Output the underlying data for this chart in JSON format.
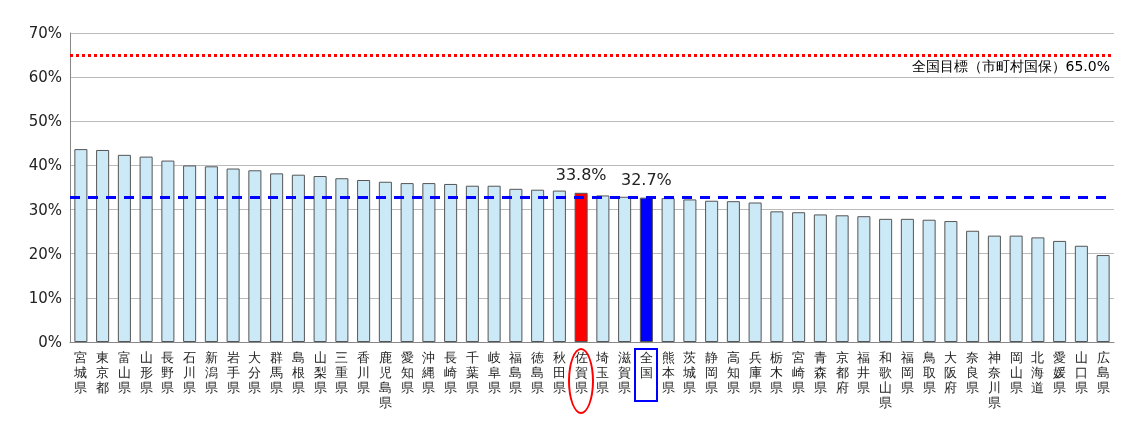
{
  "chart_data": {
    "type": "bar",
    "categories": [
      "宮城県",
      "東京都",
      "富山県",
      "山形県",
      "長野県",
      "石川県",
      "新潟県",
      "岩手県",
      "大分県",
      "群馬県",
      "島根県",
      "山梨県",
      "三重県",
      "香川県",
      "鹿児島県",
      "愛知県",
      "沖縄県",
      "長崎県",
      "千葉県",
      "岐阜県",
      "福島県",
      "徳島県",
      "秋田県",
      "佐賀県",
      "埼玉県",
      "滋賀県",
      "全国",
      "熊本県",
      "茨城県",
      "静岡県",
      "高知県",
      "兵庫県",
      "栃木県",
      "宮崎県",
      "青森県",
      "京都府",
      "福井県",
      "和歌山県",
      "福岡県",
      "鳥取県",
      "大阪府",
      "奈良県",
      "神奈川県",
      "岡山県",
      "北海道",
      "愛媛県",
      "山口県",
      "広島県"
    ],
    "values": [
      43.7,
      43.5,
      42.4,
      42.0,
      41.1,
      40.0,
      39.8,
      39.3,
      38.9,
      38.2,
      37.9,
      37.6,
      37.1,
      36.7,
      36.3,
      36.0,
      36.0,
      35.8,
      35.4,
      35.4,
      34.7,
      34.5,
      34.3,
      33.8,
      33.2,
      32.9,
      32.7,
      32.6,
      32.3,
      32.0,
      31.9,
      31.6,
      29.6,
      29.4,
      28.9,
      28.7,
      28.5,
      27.9,
      27.9,
      27.7,
      27.4,
      25.2,
      24.1,
      24.1,
      23.7,
      22.9,
      21.8,
      19.7
    ],
    "colors": [
      "#cce9f7",
      "#cce9f7",
      "#cce9f7",
      "#cce9f7",
      "#cce9f7",
      "#cce9f7",
      "#cce9f7",
      "#cce9f7",
      "#cce9f7",
      "#cce9f7",
      "#cce9f7",
      "#cce9f7",
      "#cce9f7",
      "#cce9f7",
      "#cce9f7",
      "#cce9f7",
      "#cce9f7",
      "#cce9f7",
      "#cce9f7",
      "#cce9f7",
      "#cce9f7",
      "#cce9f7",
      "#cce9f7",
      "#ff0000",
      "#cce9f7",
      "#cce9f7",
      "#0000ff",
      "#cce9f7",
      "#cce9f7",
      "#cce9f7",
      "#cce9f7",
      "#cce9f7",
      "#cce9f7",
      "#cce9f7",
      "#cce9f7",
      "#cce9f7",
      "#cce9f7",
      "#cce9f7",
      "#cce9f7",
      "#cce9f7",
      "#cce9f7",
      "#cce9f7",
      "#cce9f7",
      "#cce9f7",
      "#cce9f7",
      "#cce9f7",
      "#cce9f7",
      "#cce9f7"
    ],
    "value_labels": [
      null,
      null,
      null,
      null,
      null,
      null,
      null,
      null,
      null,
      null,
      null,
      null,
      null,
      null,
      null,
      null,
      null,
      null,
      null,
      null,
      null,
      null,
      null,
      "33.8%",
      null,
      null,
      "32.7%",
      null,
      null,
      null,
      null,
      null,
      null,
      null,
      null,
      null,
      null,
      null,
      null,
      null,
      null,
      null,
      null,
      null,
      null,
      null,
      null,
      null
    ],
    "ylim": [
      0,
      70
    ],
    "yticks": [
      {
        "value": 0,
        "label": "0%"
      },
      {
        "value": 10,
        "label": "10%"
      },
      {
        "value": 20,
        "label": "20%"
      },
      {
        "value": 30,
        "label": "30%"
      },
      {
        "value": 40,
        "label": "40%"
      },
      {
        "value": 50,
        "label": "50%"
      },
      {
        "value": 60,
        "label": "60%"
      },
      {
        "value": 70,
        "label": "70%"
      }
    ],
    "grid": "y",
    "ref_lines": [
      {
        "axis": "y",
        "value": 65.0,
        "label": "全国目標（市町村国保）65.0%",
        "color": "#ff0000",
        "line_style": "dotted"
      },
      {
        "axis": "y",
        "value": 32.7,
        "label": null,
        "color": "#0000ff",
        "line_style": "dashed"
      }
    ]
  }
}
